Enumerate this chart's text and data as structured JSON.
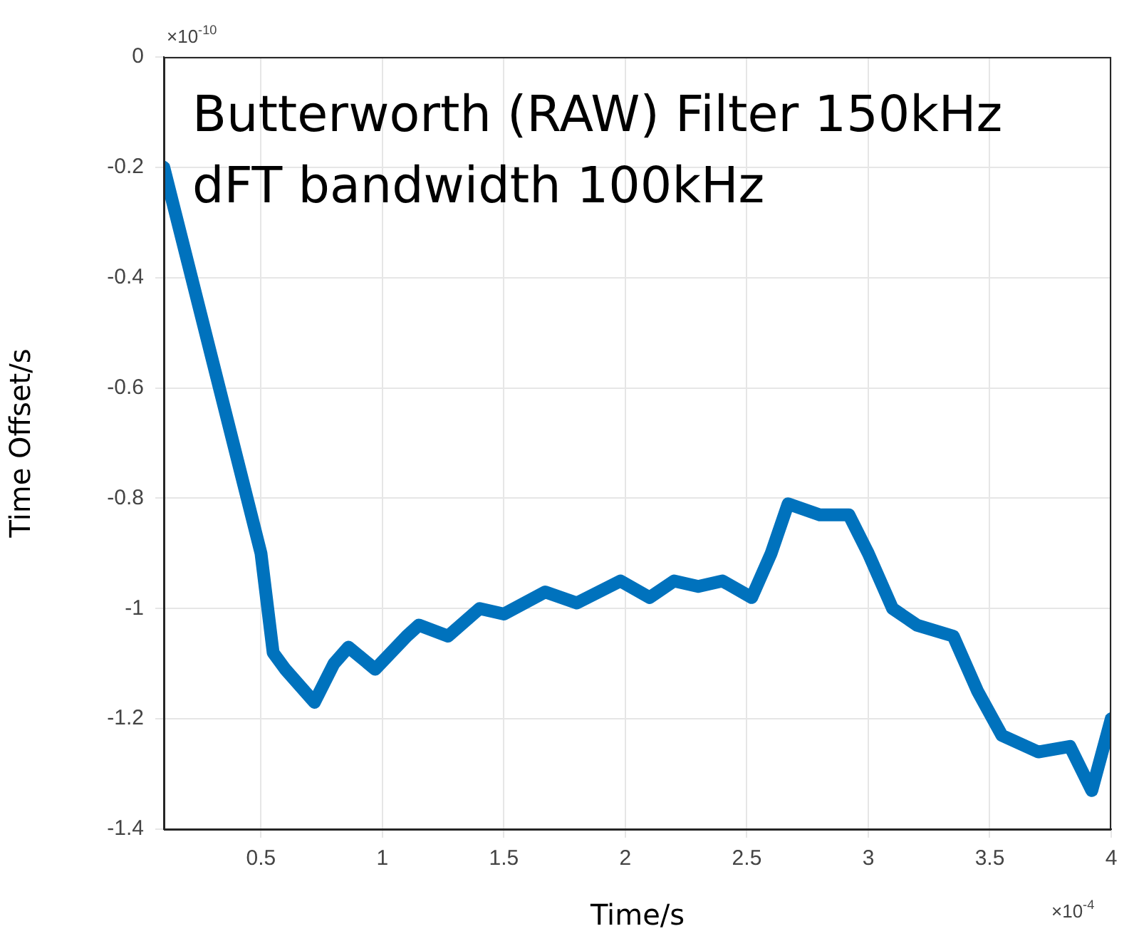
{
  "chart_data": {
    "type": "line",
    "title": "Butterworth (RAW) Filter 150kHz",
    "subtitle": "dFT bandwidth 100kHz",
    "xlabel": "Time/s",
    "ylabel": "Time Offset/s",
    "annotations": [
      "×10$^{-10}$",
      "×10$^{-4}$"
    ],
    "x": [
      0.1,
      0.5,
      0.55,
      0.6,
      0.72,
      0.8,
      0.86,
      0.97,
      1.1,
      1.15,
      1.27,
      1.4,
      1.5,
      1.67,
      1.8,
      1.98,
      2.1,
      2.2,
      2.3,
      2.4,
      2.52,
      2.6,
      2.67,
      2.8,
      2.92,
      3.0,
      3.1,
      3.2,
      3.35,
      3.45,
      3.55,
      3.7,
      3.83,
      3.92,
      4.0
    ],
    "series": [
      {
        "color": "#0072bd",
        "values": [
          -0.2,
          -0.9,
          -1.08,
          -1.11,
          -1.17,
          -1.1,
          -1.07,
          -1.11,
          -1.05,
          -1.03,
          -1.05,
          -1.0,
          -1.01,
          -0.97,
          -0.99,
          -0.95,
          -0.98,
          -0.95,
          -0.96,
          -0.95,
          -0.98,
          -0.9,
          -0.81,
          -0.83,
          -0.83,
          -0.9,
          -1.0,
          -1.03,
          -1.05,
          -1.15,
          -1.23,
          -1.26,
          -1.25,
          -1.33,
          -1.2
        ]
      }
    ],
    "xlim": [
      0.1,
      4
    ],
    "xticks": [
      0.5,
      1,
      1.5,
      2,
      2.5,
      3,
      3.5,
      4
    ],
    "ylim": [
      -1.4,
      0
    ],
    "yticks": [
      -1.4,
      -1.2,
      -1,
      -0.8,
      -0.6,
      -0.4,
      -0.2,
      0
    ],
    "grid": true,
    "legend": false,
    "marker": "none",
    "line_style": "solid"
  }
}
